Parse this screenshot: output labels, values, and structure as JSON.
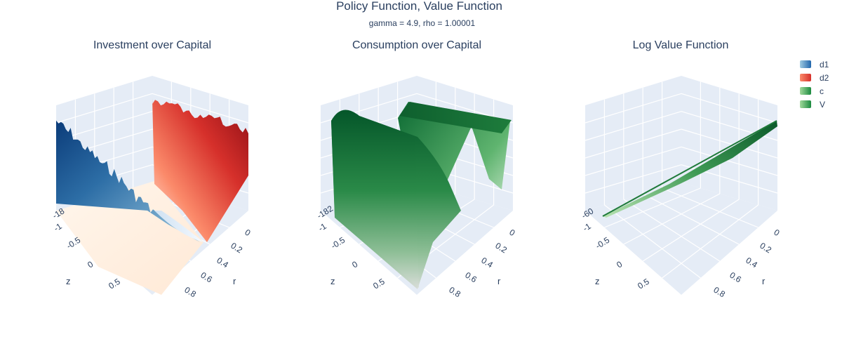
{
  "title": "Policy Function, Value Function",
  "subtitle": "gamma = 4.9, rho = 1.00001",
  "subplots": [
    {
      "title": "Investment over Capital"
    },
    {
      "title": "Consumption over Capital"
    },
    {
      "title": "Log Value Function"
    }
  ],
  "legend": [
    {
      "name": "d1",
      "color": "#2166ac"
    },
    {
      "name": "d2",
      "color": "#d6302b"
    },
    {
      "name": "c",
      "color": "#1b8a3f"
    },
    {
      "name": "V",
      "color": "#1b8a3f"
    }
  ],
  "chart_data": [
    {
      "type": "surface",
      "title": "Investment over Capital",
      "xlabel": "r",
      "ylabel": "z",
      "r_ticks": [
        "0",
        "0.2",
        "0.4",
        "0.6",
        "0.8"
      ],
      "z_ticks": [
        "-1",
        "-0.5",
        "0",
        "0.5"
      ],
      "z_tick_fragment": "-18",
      "series": [
        {
          "name": "d1",
          "colorscale": "Blues"
        },
        {
          "name": "d2",
          "colorscale": "Reds"
        }
      ]
    },
    {
      "type": "surface",
      "title": "Consumption over Capital",
      "xlabel": "r",
      "ylabel": "z",
      "r_ticks": [
        "0",
        "0.2",
        "0.4",
        "0.6",
        "0.8"
      ],
      "z_ticks": [
        "-1",
        "-0.5",
        "0",
        "0.5"
      ],
      "z_tick_fragment": "-182",
      "series": [
        {
          "name": "c",
          "colorscale": "Greens"
        }
      ]
    },
    {
      "type": "surface",
      "title": "Log Value Function",
      "xlabel": "r",
      "ylabel": "z",
      "r_ticks": [
        "0",
        "0.2",
        "0.4",
        "0.6",
        "0.8"
      ],
      "z_ticks": [
        "-1",
        "-0.5",
        "0",
        "0.5"
      ],
      "z_tick_fragment": "-60",
      "series": [
        {
          "name": "V",
          "colorscale": "Greens"
        }
      ]
    }
  ]
}
